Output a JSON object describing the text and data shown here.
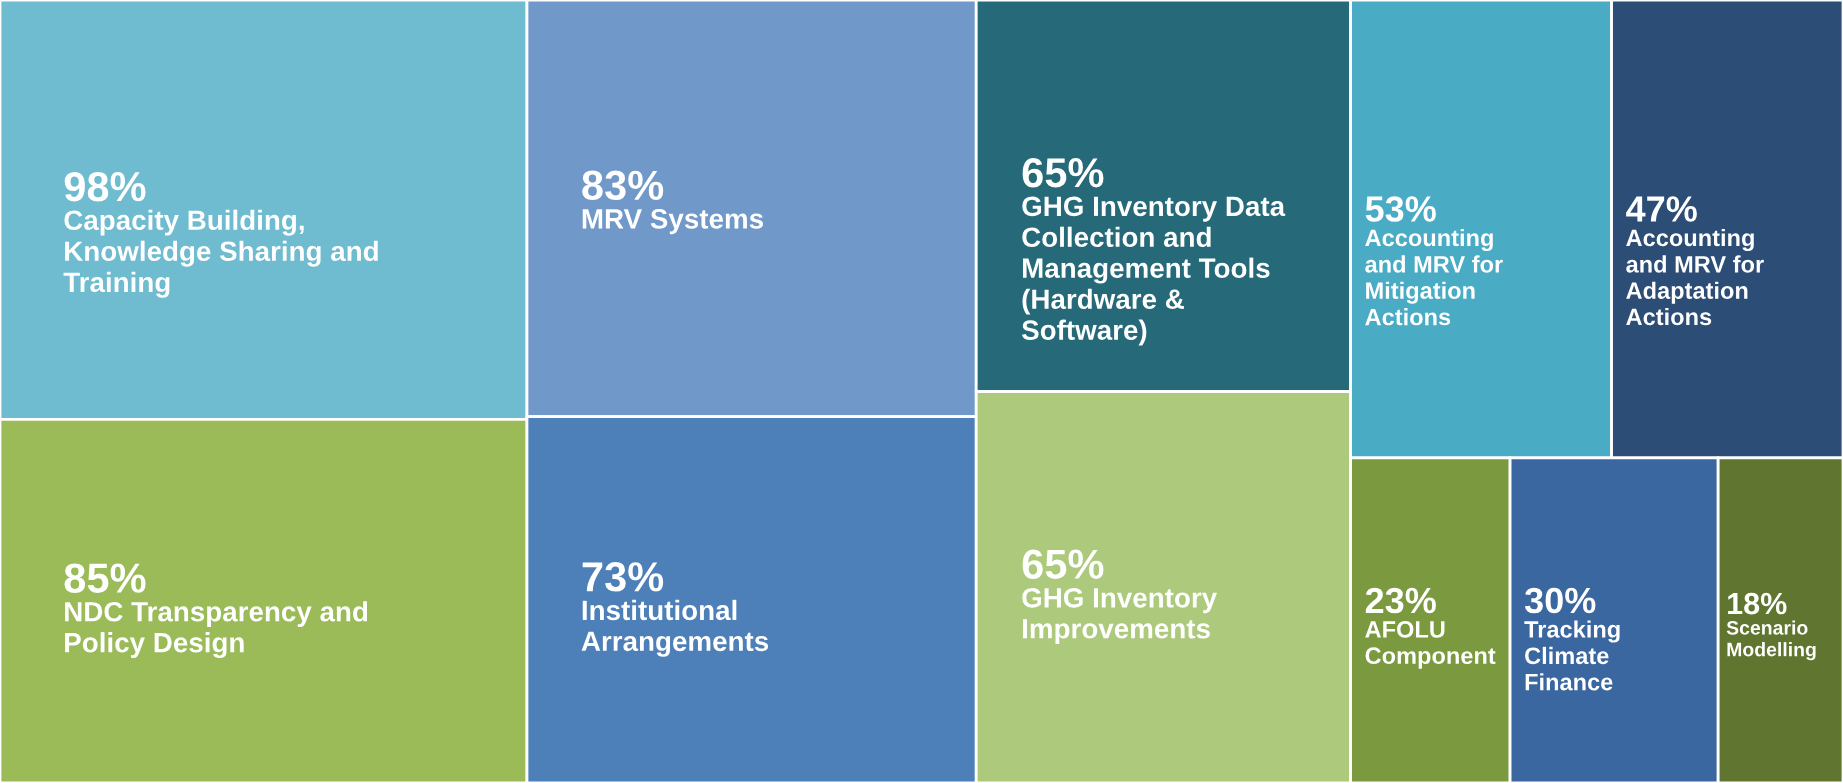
{
  "chart_data": {
    "type": "other",
    "categories": [
      "Capacity Building,\nKnowledge Sharing and\nTraining",
      "NDC Transparency and\nPolicy Design",
      "MRV Systems",
      "Institutional\nArrangements",
      "GHG Inventory Data\nCollection and\nManagement Tools\n(Hardware &\nSoftware)",
      "GHG Inventory\nImprovements",
      "Accounting\nand MRV for\nMitigation\nActions",
      "Accounting\nand MRV for\nAdaptation\nActions",
      "AFOLU\nComponent",
      "Tracking\nClimate\nFinance",
      "Scenario\nModelling"
    ],
    "values": [
      98,
      85,
      83,
      73,
      65,
      65,
      53,
      47,
      23,
      30,
      18
    ],
    "value_labels": [
      "98%",
      "85%",
      "83%",
      "73%",
      "65%",
      "65%",
      "53%",
      "47%",
      "23%",
      "30%",
      "18%"
    ],
    "colors": [
      "#6fbbd0",
      "#9bbb59",
      "#7098c9",
      "#4d7fb9",
      "#266a7a",
      "#adc97c",
      "#4aabc5",
      "#2c4d75",
      "#7b9a3f",
      "#3a67a0",
      "#5f7530"
    ]
  }
}
